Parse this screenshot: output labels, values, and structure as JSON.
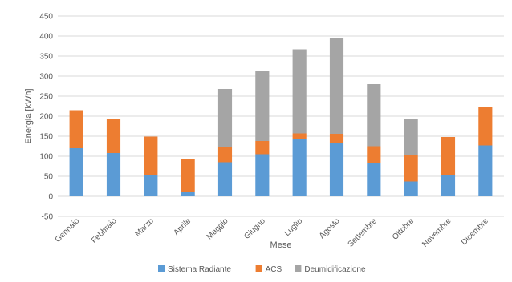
{
  "chart_data": {
    "type": "bar",
    "stacked": true,
    "title": "",
    "xlabel": "Mese",
    "ylabel": "Energia [kWh]",
    "ylim": [
      -50,
      450
    ],
    "yticks": [
      -50,
      0,
      50,
      100,
      150,
      200,
      250,
      300,
      350,
      400,
      450
    ],
    "grid": true,
    "legend_position": "bottom",
    "categories": [
      "Gennaio",
      "Febbraio",
      "Marzo",
      "Aprile",
      "Maggio",
      "Giugno",
      "Luglio",
      "Agosto",
      "Settembre",
      "Ottobre",
      "Novembre",
      "Dicembre"
    ],
    "series": [
      {
        "name": "Sistema Radiante",
        "color": "#5B9BD5",
        "values": [
          120,
          108,
          52,
          10,
          85,
          105,
          142,
          133,
          83,
          37,
          53,
          127
        ]
      },
      {
        "name": "ACS",
        "color": "#ED7D31",
        "values": [
          95,
          85,
          97,
          82,
          38,
          33,
          15,
          23,
          42,
          67,
          95,
          95
        ]
      },
      {
        "name": "Deumidificazione",
        "color": "#A5A5A5",
        "values": [
          0,
          0,
          0,
          0,
          145,
          175,
          210,
          238,
          155,
          90,
          0,
          0
        ]
      }
    ]
  }
}
